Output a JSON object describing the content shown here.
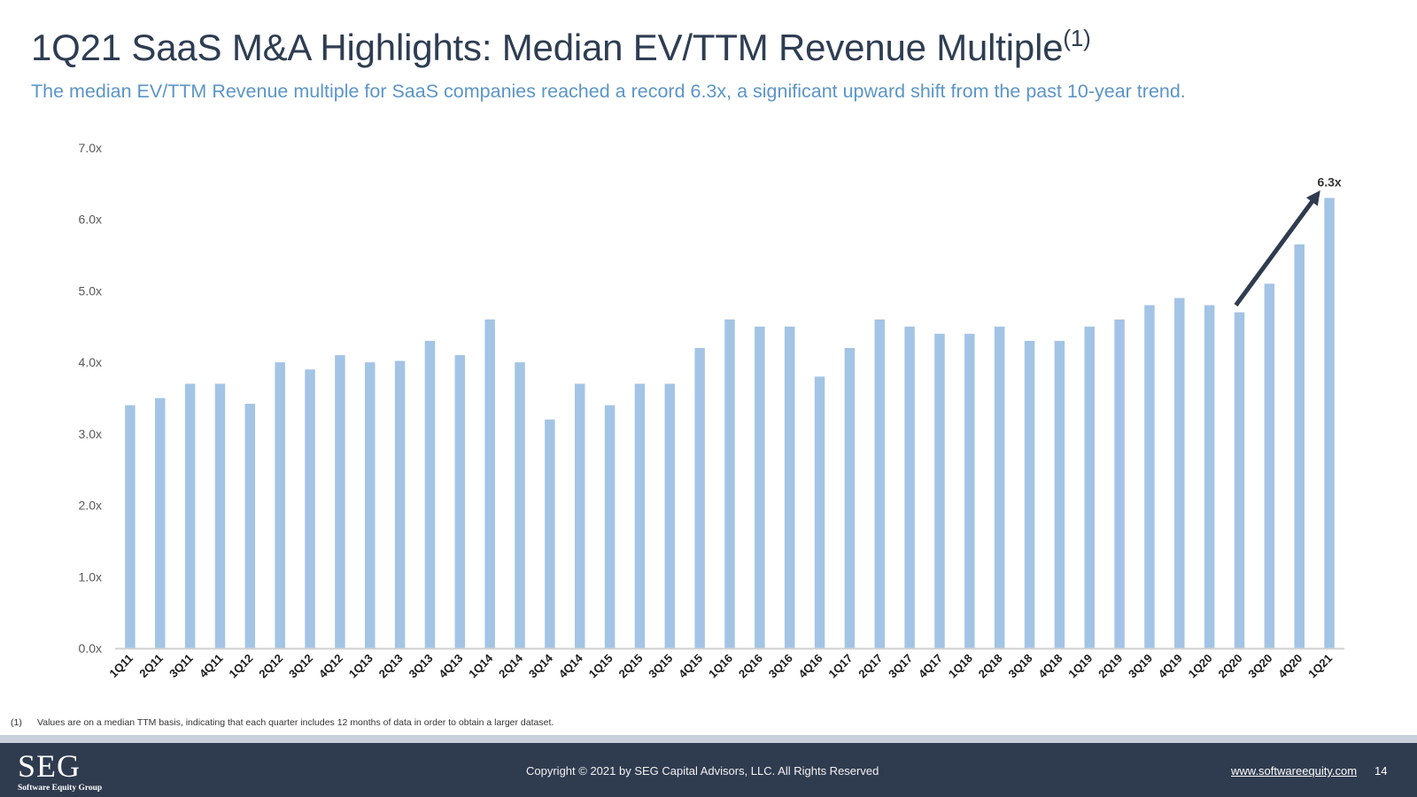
{
  "title": {
    "main": "1Q21 SaaS M&A Highlights: Median EV/TTM Revenue Multiple",
    "sup": "(1)"
  },
  "subtitle": "The median EV/TTM Revenue multiple for SaaS companies reached a record 6.3x, a significant upward shift from the past 10-year trend.",
  "chart_data": {
    "type": "bar",
    "title": "Median EV/TTM Revenue Multiple",
    "xlabel": "",
    "ylabel": "",
    "ylim": [
      0,
      7
    ],
    "yticks": [
      "0.0x",
      "1.0x",
      "2.0x",
      "3.0x",
      "4.0x",
      "5.0x",
      "6.0x",
      "7.0x"
    ],
    "categories": [
      "1Q11",
      "2Q11",
      "3Q11",
      "4Q11",
      "1Q12",
      "2Q12",
      "3Q12",
      "4Q12",
      "1Q13",
      "2Q13",
      "3Q13",
      "4Q13",
      "1Q14",
      "2Q14",
      "3Q14",
      "4Q14",
      "1Q15",
      "2Q15",
      "3Q15",
      "4Q15",
      "1Q16",
      "2Q16",
      "3Q16",
      "4Q16",
      "1Q17",
      "2Q17",
      "3Q17",
      "4Q17",
      "1Q18",
      "2Q18",
      "3Q18",
      "4Q18",
      "1Q19",
      "2Q19",
      "3Q19",
      "4Q19",
      "1Q20",
      "2Q20",
      "3Q20",
      "4Q20",
      "1Q21"
    ],
    "values": [
      3.4,
      3.5,
      3.7,
      3.7,
      3.42,
      4.0,
      3.9,
      4.1,
      4.0,
      4.02,
      4.3,
      4.1,
      4.6,
      4.0,
      3.2,
      3.7,
      3.4,
      3.7,
      3.7,
      4.2,
      4.6,
      4.5,
      4.5,
      3.8,
      4.2,
      4.6,
      4.5,
      4.4,
      4.4,
      4.5,
      4.3,
      4.3,
      4.5,
      4.6,
      4.8,
      4.9,
      4.8,
      4.7,
      5.1,
      5.65,
      6.3
    ],
    "bar_color": "#a3c4e5",
    "axis_color": "#d0d0d0",
    "annotation": {
      "label": "6.3x",
      "arrow_from": "2Q20",
      "arrow_to": "1Q21",
      "arrow_color": "#2f3b4f"
    }
  },
  "footnote": {
    "num": "(1)",
    "text": "Values are on a median TTM basis, indicating that each quarter includes 12 months of data in order to obtain a larger dataset."
  },
  "footer": {
    "logo": "SEG",
    "logo_sub": "Software Equity Group",
    "copyright": "Copyright © 2021 by SEG Capital Advisors, LLC. All Rights Reserved",
    "website": "www.softwareequity.com",
    "page_number": "14"
  }
}
